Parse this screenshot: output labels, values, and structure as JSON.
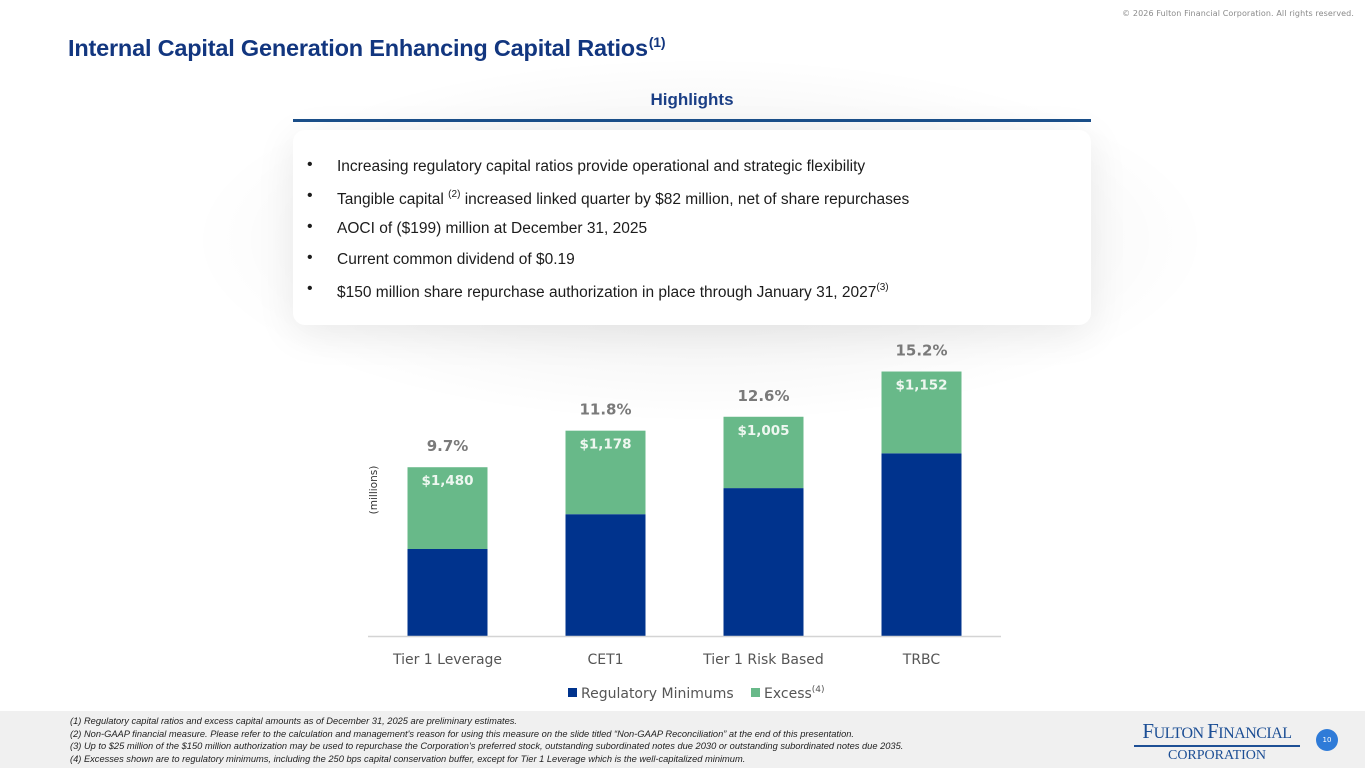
{
  "copyright": "© 2026 Fulton Financial Corporation.  All rights  reserved.",
  "title": "Internal Capital Generation Enhancing Capital Ratios",
  "title_footnote": "(1)",
  "highlights": {
    "heading": "Highlights",
    "bullets": [
      {
        "text": "Increasing regulatory capital ratios provide operational and strategic flexibility",
        "sup": "",
        "rest": ""
      },
      {
        "text": "Tangible capital ",
        "sup": "(2)",
        "rest": " increased linked quarter by $82 million, net of share repurchases"
      },
      {
        "text": "AOCI of ($199) million at December  31, 2025",
        "sup": "",
        "rest": ""
      },
      {
        "text": "Current common dividend of $0.19",
        "sup": "",
        "rest": ""
      },
      {
        "text": "$150 million share repurchase authorization in place through January 31, 2027",
        "sup": "(3)",
        "rest": ""
      }
    ]
  },
  "chart_data": {
    "type": "bar",
    "stacked": true,
    "title": "",
    "xlabel": "",
    "ylabel": "(millions)",
    "categories": [
      "Tier 1 Leverage",
      "CET1",
      "Tier 1 Risk Based",
      "TRBC"
    ],
    "ratio_labels": [
      "9.7%",
      "11.8%",
      "12.6%",
      "15.2%"
    ],
    "ratios_pct": [
      9.7,
      11.8,
      12.6,
      15.2
    ],
    "regulatory_minimum_pct": [
      5.0,
      7.0,
      8.5,
      10.5
    ],
    "excess_labels": [
      "$1,480",
      "$1,178",
      "$1,005",
      "$1,152"
    ],
    "excess_millions": [
      1480,
      1178,
      1005,
      1152
    ],
    "series": [
      {
        "name": "Regulatory Minimums",
        "color": "#00338d"
      },
      {
        "name": "Excess",
        "sup": "(4)",
        "color": "#68b989"
      }
    ],
    "legend_position": "bottom",
    "grid": false,
    "ylim_pct": [
      0,
      16
    ]
  },
  "footnotes": [
    "(1) Regulatory capital ratios  and excess capital  amounts as of December 31, 2025 are preliminary estimates.",
    "(2) Non-GAAP financial measure. Please refer to the calculation and management's reason for using this measure on the slide titled “Non-GAAP Reconciliation” at the end of this presentation.",
    "(3) Up to $25 million of the $150 million authorization may be used to repurchase the Corporation's preferred stock, outstanding subordinated notes due 2030 or outstanding subordinated notes due 2035.",
    "(4) Excesses shown are to regulatory minimums, including the 250 bps capital conservation buffer, except for Tier 1 Leverage which is the well-capitalized  minimum."
  ],
  "logo": {
    "line1_big_f": "F",
    "line1_a": "ULTON ",
    "line1_big_f2": "F",
    "line1_b": "INANCIAL",
    "line2": "CORPORATION"
  },
  "page_number": "10"
}
